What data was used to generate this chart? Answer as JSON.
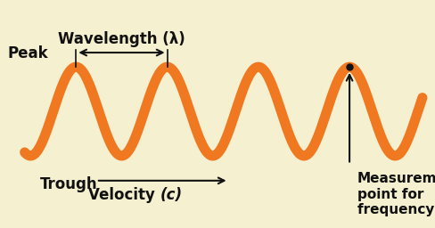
{
  "bg_color": "#f5f0d0",
  "wave_color": "#f07820",
  "wave_linewidth": 8,
  "wave_amplitude": 0.68,
  "text_color": "#111111",
  "peak_label": "Peak",
  "trough_label": "Trough",
  "wavelength_label": "Wavelength (λ)",
  "velocity_label_a": "Velocity ",
  "velocity_label_b": "(c)",
  "measurement_label": "Measurement\npoint for\nfrequency (ν)",
  "font_size_main": 12,
  "font_size_meas": 11,
  "figsize": [
    4.89,
    2.56
  ],
  "dpi": 100
}
